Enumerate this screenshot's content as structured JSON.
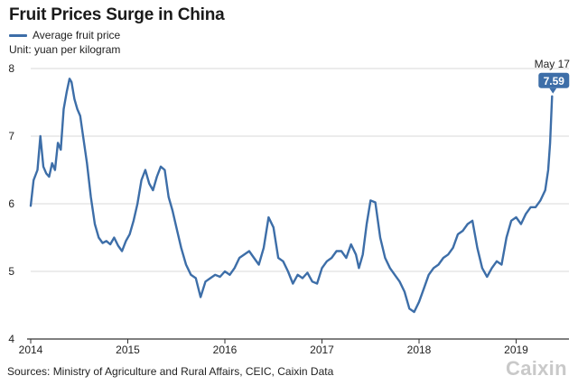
{
  "colors": {
    "series": "#3d6ea8",
    "axis": "#333333",
    "grid": "#d9d9d9",
    "text": "#222222",
    "brand": "#c9c9c9"
  },
  "header": {
    "title": "Fruit Prices Surge in China",
    "unit_note": "Unit: yuan per kilogram"
  },
  "footer": {
    "source": "Sources: Ministry of Agriculture and Rural Affairs, CEIC, Caixin Data",
    "brand": "Caixin"
  },
  "chart_data": {
    "type": "line",
    "title": "Fruit Prices Surge in China",
    "xlabel": "",
    "ylabel": "",
    "xlim": [
      2014.0,
      2019.55
    ],
    "ylim": [
      4,
      8
    ],
    "x_ticks": [
      "2014",
      "2015",
      "2016",
      "2017",
      "2018",
      "2019"
    ],
    "y_ticks": [
      "4",
      "5",
      "6",
      "7",
      "8"
    ],
    "grid": "horizontal",
    "legend_position": "top-left",
    "annotation": {
      "label": "May 17",
      "value_label": "7.59",
      "x": 2019.37,
      "y": 7.59
    },
    "series": [
      {
        "name": "Average fruit price",
        "color": "#3d6ea8",
        "x": [
          2014.0,
          2014.03,
          2014.07,
          2014.1,
          2014.13,
          2014.16,
          2014.19,
          2014.22,
          2014.25,
          2014.28,
          2014.31,
          2014.34,
          2014.37,
          2014.4,
          2014.42,
          2014.45,
          2014.48,
          2014.51,
          2014.54,
          2014.58,
          2014.62,
          2014.66,
          2014.7,
          2014.74,
          2014.78,
          2014.82,
          2014.86,
          2014.9,
          2014.94,
          2014.98,
          2015.02,
          2015.06,
          2015.1,
          2015.14,
          2015.18,
          2015.22,
          2015.26,
          2015.3,
          2015.34,
          2015.38,
          2015.42,
          2015.46,
          2015.5,
          2015.55,
          2015.6,
          2015.65,
          2015.7,
          2015.75,
          2015.8,
          2015.85,
          2015.9,
          2015.95,
          2016.0,
          2016.05,
          2016.1,
          2016.15,
          2016.2,
          2016.25,
          2016.3,
          2016.35,
          2016.4,
          2016.45,
          2016.5,
          2016.55,
          2016.6,
          2016.65,
          2016.7,
          2016.75,
          2016.8,
          2016.85,
          2016.9,
          2016.95,
          2017.0,
          2017.05,
          2017.1,
          2017.15,
          2017.2,
          2017.25,
          2017.3,
          2017.35,
          2017.38,
          2017.42,
          2017.46,
          2017.5,
          2017.55,
          2017.6,
          2017.65,
          2017.7,
          2017.75,
          2017.8,
          2017.85,
          2017.9,
          2017.95,
          2018.0,
          2018.05,
          2018.1,
          2018.15,
          2018.2,
          2018.25,
          2018.3,
          2018.35,
          2018.4,
          2018.45,
          2018.5,
          2018.55,
          2018.6,
          2018.65,
          2018.7,
          2018.75,
          2018.8,
          2018.85,
          2018.9,
          2018.95,
          2019.0,
          2019.05,
          2019.1,
          2019.15,
          2019.2,
          2019.25,
          2019.3,
          2019.33,
          2019.35,
          2019.37
        ],
        "y": [
          5.97,
          6.35,
          6.5,
          7.0,
          6.55,
          6.45,
          6.4,
          6.6,
          6.5,
          6.9,
          6.8,
          7.4,
          7.65,
          7.85,
          7.8,
          7.55,
          7.4,
          7.3,
          7.0,
          6.6,
          6.1,
          5.7,
          5.5,
          5.42,
          5.45,
          5.4,
          5.5,
          5.38,
          5.3,
          5.45,
          5.55,
          5.75,
          6.0,
          6.35,
          6.5,
          6.3,
          6.2,
          6.4,
          6.55,
          6.5,
          6.1,
          5.9,
          5.65,
          5.35,
          5.1,
          4.95,
          4.9,
          4.62,
          4.85,
          4.9,
          4.95,
          4.92,
          5.0,
          4.95,
          5.05,
          5.2,
          5.25,
          5.3,
          5.2,
          5.1,
          5.35,
          5.8,
          5.65,
          5.2,
          5.15,
          5.0,
          4.82,
          4.95,
          4.9,
          4.98,
          4.85,
          4.82,
          5.05,
          5.15,
          5.2,
          5.3,
          5.3,
          5.2,
          5.4,
          5.25,
          5.05,
          5.25,
          5.7,
          6.05,
          6.02,
          5.5,
          5.2,
          5.05,
          4.95,
          4.85,
          4.7,
          4.45,
          4.4,
          4.55,
          4.75,
          4.95,
          5.05,
          5.1,
          5.2,
          5.25,
          5.35,
          5.55,
          5.6,
          5.7,
          5.75,
          5.35,
          5.05,
          4.92,
          5.05,
          5.15,
          5.1,
          5.5,
          5.75,
          5.8,
          5.7,
          5.85,
          5.95,
          5.95,
          6.05,
          6.2,
          6.5,
          6.9,
          7.59
        ]
      }
    ]
  }
}
